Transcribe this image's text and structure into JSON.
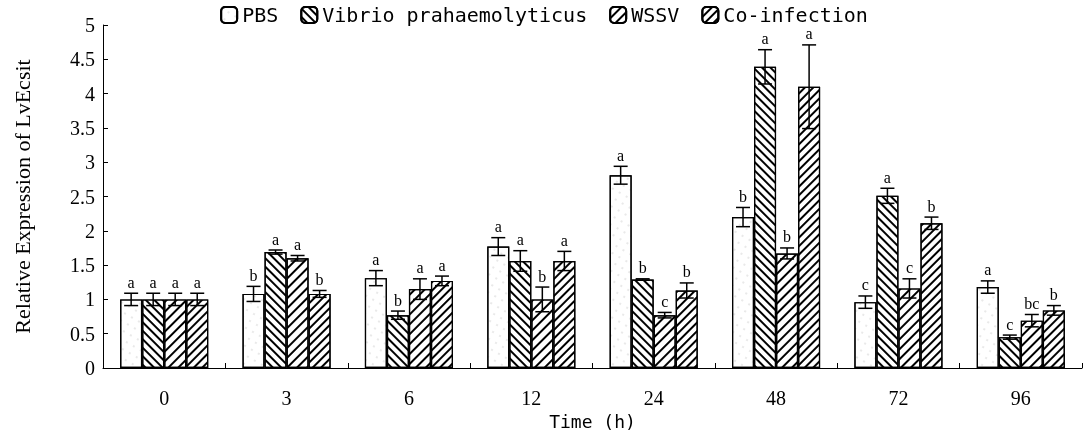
{
  "chart_data": {
    "type": "bar",
    "xlabel": "Time (h)",
    "ylabel": "Relative Expression of LvEcsit",
    "categories": [
      "0",
      "3",
      "6",
      "12",
      "24",
      "48",
      "72",
      "96"
    ],
    "series": [
      {
        "name": "PBS",
        "color": "#ffffff",
        "values": [
          1.0,
          1.08,
          1.31,
          1.77,
          2.81,
          2.2,
          0.96,
          1.18
        ],
        "errors": [
          0.09,
          0.11,
          0.11,
          0.13,
          0.13,
          0.14,
          0.09,
          0.09
        ],
        "value_labels": [
          "a",
          "b",
          "a",
          "a",
          "a",
          "b",
          "c",
          "a"
        ]
      },
      {
        "name": "Vibrio prahaemolyticus",
        "color": "#ffffff",
        "values": [
          1.0,
          1.69,
          0.77,
          1.56,
          1.29,
          4.39,
          2.51,
          0.45
        ],
        "errors": [
          0.09,
          0.03,
          0.06,
          0.15,
          0.01,
          0.25,
          0.11,
          0.03
        ],
        "value_labels": [
          "a",
          "a",
          "b",
          "a",
          "b",
          "a",
          "a",
          "c"
        ]
      },
      {
        "name": "WSSV",
        "color": "#ffffff",
        "values": [
          1.0,
          1.6,
          1.15,
          1.0,
          0.77,
          1.67,
          1.16,
          0.69
        ],
        "errors": [
          0.09,
          0.04,
          0.15,
          0.18,
          0.04,
          0.08,
          0.14,
          0.09
        ],
        "value_labels": [
          "a",
          "a",
          "a",
          "b",
          "c",
          "b",
          "c",
          "bc"
        ]
      },
      {
        "name": "Co-infection",
        "color": "#ffffff",
        "values": [
          1.0,
          1.08,
          1.27,
          1.56,
          1.13,
          4.1,
          2.11,
          0.84
        ],
        "errors": [
          0.09,
          0.05,
          0.07,
          0.14,
          0.11,
          0.61,
          0.09,
          0.07
        ],
        "value_labels": [
          "a",
          "b",
          "a",
          "a",
          "b",
          "a",
          "b",
          "b"
        ]
      }
    ],
    "ylim": [
      0,
      5
    ],
    "yticks": [
      0,
      0.5,
      1,
      1.5,
      2,
      2.5,
      3,
      3.5,
      4,
      4.5,
      5
    ],
    "grid": false,
    "legend": "top"
  }
}
